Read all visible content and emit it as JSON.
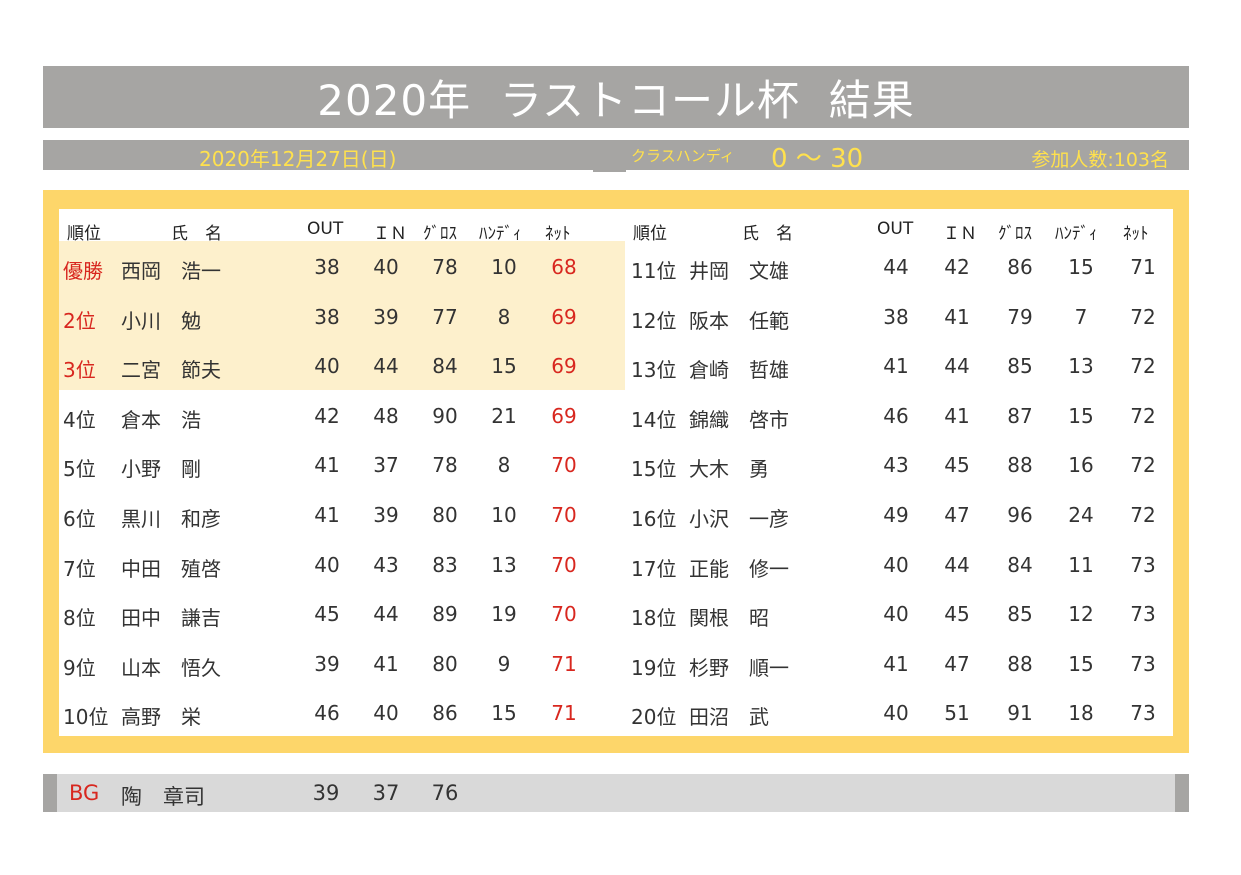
{
  "title": "2020年  ラストコール杯  結果",
  "info": {
    "date": "2020年12月27日(日)",
    "class_label": "クラスハンディ",
    "class_range": "0 ～ 30",
    "participants": "参加人数:103名"
  },
  "headers": {
    "rank": "順位",
    "name": "氏　名",
    "out": "OUT",
    "in": "ＩＮ",
    "gross": "ｸﾞﾛｽ",
    "handicap": "ﾊﾝﾃﾞｨ",
    "net": "ﾈｯﾄ"
  },
  "left_rows": [
    {
      "rank": "優勝",
      "name": "西岡　浩一",
      "out": "38",
      "in": "40",
      "gross": "78",
      "hdcp": "10",
      "net": "68"
    },
    {
      "rank": "2位",
      "name": "小川　勉",
      "out": "38",
      "in": "39",
      "gross": "77",
      "hdcp": "8",
      "net": "69"
    },
    {
      "rank": "3位",
      "name": "二宮　節夫",
      "out": "40",
      "in": "44",
      "gross": "84",
      "hdcp": "15",
      "net": "69"
    },
    {
      "rank": "4位",
      "name": "倉本　浩",
      "out": "42",
      "in": "48",
      "gross": "90",
      "hdcp": "21",
      "net": "69"
    },
    {
      "rank": "5位",
      "name": "小野　剛",
      "out": "41",
      "in": "37",
      "gross": "78",
      "hdcp": "8",
      "net": "70"
    },
    {
      "rank": "6位",
      "name": "黒川　和彦",
      "out": "41",
      "in": "39",
      "gross": "80",
      "hdcp": "10",
      "net": "70"
    },
    {
      "rank": "7位",
      "name": "中田　殖啓",
      "out": "40",
      "in": "43",
      "gross": "83",
      "hdcp": "13",
      "net": "70"
    },
    {
      "rank": "8位",
      "name": "田中　謙吉",
      "out": "45",
      "in": "44",
      "gross": "89",
      "hdcp": "19",
      "net": "70"
    },
    {
      "rank": "9位",
      "name": "山本　悟久",
      "out": "39",
      "in": "41",
      "gross": "80",
      "hdcp": "9",
      "net": "71"
    },
    {
      "rank": "10位",
      "name": "高野　栄",
      "out": "46",
      "in": "40",
      "gross": "86",
      "hdcp": "15",
      "net": "71"
    }
  ],
  "right_rows": [
    {
      "rank": "11位",
      "name": "井岡　文雄",
      "out": "44",
      "in": "42",
      "gross": "86",
      "hdcp": "15",
      "net": "71"
    },
    {
      "rank": "12位",
      "name": "阪本　任範",
      "out": "38",
      "in": "41",
      "gross": "79",
      "hdcp": "7",
      "net": "72"
    },
    {
      "rank": "13位",
      "name": "倉崎　哲雄",
      "out": "41",
      "in": "44",
      "gross": "85",
      "hdcp": "13",
      "net": "72"
    },
    {
      "rank": "14位",
      "name": "錦織　啓市",
      "out": "46",
      "in": "41",
      "gross": "87",
      "hdcp": "15",
      "net": "72"
    },
    {
      "rank": "15位",
      "name": "大木　勇",
      "out": "43",
      "in": "45",
      "gross": "88",
      "hdcp": "16",
      "net": "72"
    },
    {
      "rank": "16位",
      "name": "小沢　一彦",
      "out": "49",
      "in": "47",
      "gross": "96",
      "hdcp": "24",
      "net": "72"
    },
    {
      "rank": "17位",
      "name": "正能　修一",
      "out": "40",
      "in": "44",
      "gross": "84",
      "hdcp": "11",
      "net": "73"
    },
    {
      "rank": "18位",
      "name": "関根　昭",
      "out": "40",
      "in": "45",
      "gross": "85",
      "hdcp": "12",
      "net": "73"
    },
    {
      "rank": "19位",
      "name": "杉野　順一",
      "out": "41",
      "in": "47",
      "gross": "88",
      "hdcp": "15",
      "net": "73"
    },
    {
      "rank": "20位",
      "name": "田沼　武",
      "out": "40",
      "in": "51",
      "gross": "91",
      "hdcp": "18",
      "net": "73"
    }
  ],
  "bg": {
    "label": "BG",
    "name": "陶　章司",
    "out": "39",
    "in": "37",
    "gross": "76"
  },
  "colors": {
    "gray_bar": "#a6a5a3",
    "yellow_frame": "#fdd66a",
    "highlight": "#fdf0cc",
    "accent_red": "#d8271f",
    "info_text": "#ffe14d"
  }
}
